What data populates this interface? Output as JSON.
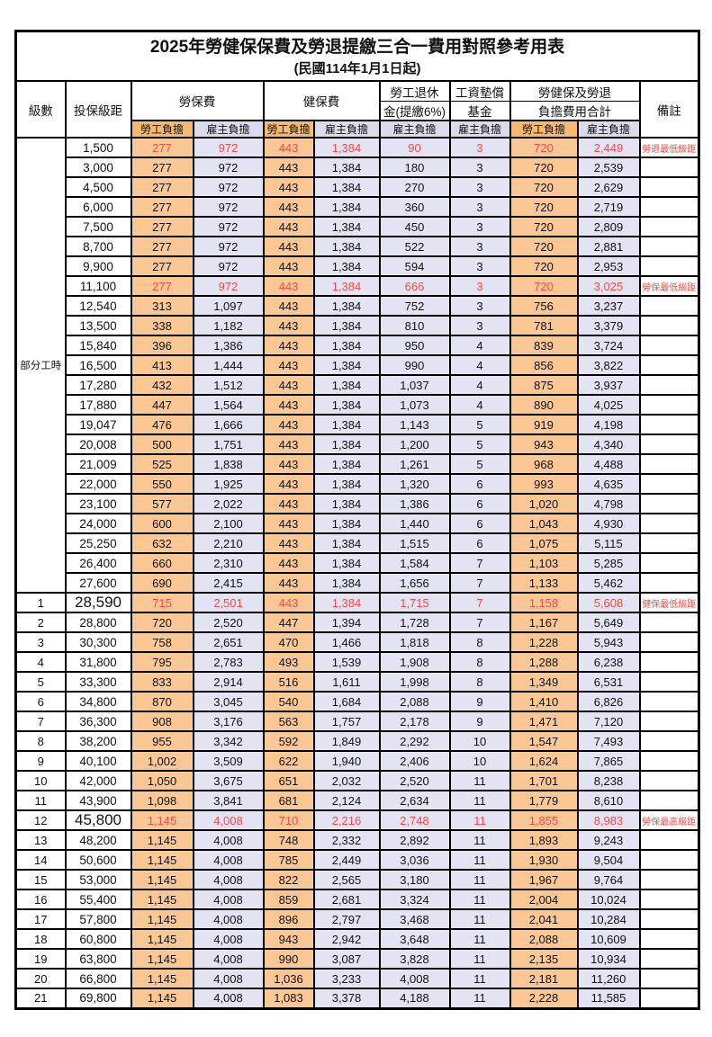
{
  "title": "2025年勞健保保費及勞退提繳三合一費用對照參考用表",
  "subtitle": "(民國114年1月1日起)",
  "colors": {
    "employee_header_bg": "#F8B871",
    "employee_cell_bg": "#FAC795",
    "employer_header_bg": "#DBDAED",
    "employer_cell_bg": "#E4E3F3",
    "highlight_red": "#EE4D4B",
    "text": "#111111",
    "border": "#000000"
  },
  "table": {
    "headers": {
      "level": "級數",
      "bracket": "投保級距",
      "labor": "勞保費",
      "health": "健保費",
      "pension_line1": "勞工退休",
      "pension_line2": "金(提繳6%)",
      "fund_line1": "工資墊償",
      "fund_line2": "基金",
      "total_line1": "勞健保及勞退",
      "total_line2": "負擔費用合計",
      "note": "備註",
      "employee_share": "勞工負擔",
      "employer_share": "雇主負擔"
    },
    "part_time_label": "部分工時",
    "part_time_rowspan": 23,
    "row_fields": [
      "level",
      "bracket",
      "labor_employee",
      "labor_employer",
      "health_employee",
      "health_employer",
      "pension_employer",
      "fund_employer",
      "total_employee",
      "total_employer",
      "note",
      "flags(r=red,b=big-bracket)"
    ],
    "rows": [
      [
        "",
        "1,500",
        "277",
        "972",
        "443",
        "1,384",
        "90",
        "3",
        "720",
        "2,449",
        "勞退最低級距",
        "r"
      ],
      [
        "",
        "3,000",
        "277",
        "972",
        "443",
        "1,384",
        "180",
        "3",
        "720",
        "2,539",
        "",
        ""
      ],
      [
        "",
        "4,500",
        "277",
        "972",
        "443",
        "1,384",
        "270",
        "3",
        "720",
        "2,629",
        "",
        ""
      ],
      [
        "",
        "6,000",
        "277",
        "972",
        "443",
        "1,384",
        "360",
        "3",
        "720",
        "2,719",
        "",
        ""
      ],
      [
        "",
        "7,500",
        "277",
        "972",
        "443",
        "1,384",
        "450",
        "3",
        "720",
        "2,809",
        "",
        ""
      ],
      [
        "",
        "8,700",
        "277",
        "972",
        "443",
        "1,384",
        "522",
        "3",
        "720",
        "2,881",
        "",
        ""
      ],
      [
        "",
        "9,900",
        "277",
        "972",
        "443",
        "1,384",
        "594",
        "3",
        "720",
        "2,953",
        "",
        ""
      ],
      [
        "",
        "11,100",
        "277",
        "972",
        "443",
        "1,384",
        "666",
        "3",
        "720",
        "3,025",
        "勞保最低級距",
        "r"
      ],
      [
        "",
        "12,540",
        "313",
        "1,097",
        "443",
        "1,384",
        "752",
        "3",
        "756",
        "3,237",
        "",
        ""
      ],
      [
        "",
        "13,500",
        "338",
        "1,182",
        "443",
        "1,384",
        "810",
        "3",
        "781",
        "3,379",
        "",
        ""
      ],
      [
        "",
        "15,840",
        "396",
        "1,386",
        "443",
        "1,384",
        "950",
        "4",
        "839",
        "3,724",
        "",
        ""
      ],
      [
        "",
        "16,500",
        "413",
        "1,444",
        "443",
        "1,384",
        "990",
        "4",
        "856",
        "3,822",
        "",
        ""
      ],
      [
        "",
        "17,280",
        "432",
        "1,512",
        "443",
        "1,384",
        "1,037",
        "4",
        "875",
        "3,937",
        "",
        ""
      ],
      [
        "",
        "17,880",
        "447",
        "1,564",
        "443",
        "1,384",
        "1,073",
        "4",
        "890",
        "4,025",
        "",
        ""
      ],
      [
        "",
        "19,047",
        "476",
        "1,666",
        "443",
        "1,384",
        "1,143",
        "5",
        "919",
        "4,198",
        "",
        ""
      ],
      [
        "",
        "20,008",
        "500",
        "1,751",
        "443",
        "1,384",
        "1,200",
        "5",
        "943",
        "4,340",
        "",
        ""
      ],
      [
        "",
        "21,009",
        "525",
        "1,838",
        "443",
        "1,384",
        "1,261",
        "5",
        "968",
        "4,488",
        "",
        ""
      ],
      [
        "",
        "22,000",
        "550",
        "1,925",
        "443",
        "1,384",
        "1,320",
        "6",
        "993",
        "4,635",
        "",
        ""
      ],
      [
        "",
        "23,100",
        "577",
        "2,022",
        "443",
        "1,384",
        "1,386",
        "6",
        "1,020",
        "4,798",
        "",
        ""
      ],
      [
        "",
        "24,000",
        "600",
        "2,100",
        "443",
        "1,384",
        "1,440",
        "6",
        "1,043",
        "4,930",
        "",
        ""
      ],
      [
        "",
        "25,250",
        "632",
        "2,210",
        "443",
        "1,384",
        "1,515",
        "6",
        "1,075",
        "5,115",
        "",
        ""
      ],
      [
        "",
        "26,400",
        "660",
        "2,310",
        "443",
        "1,384",
        "1,584",
        "7",
        "1,103",
        "5,285",
        "",
        ""
      ],
      [
        "",
        "27,600",
        "690",
        "2,415",
        "443",
        "1,384",
        "1,656",
        "7",
        "1,133",
        "5,462",
        "",
        ""
      ],
      [
        "1",
        "28,590",
        "715",
        "2,501",
        "443",
        "1,384",
        "1,715",
        "7",
        "1,158",
        "5,608",
        "健保最低級距",
        "rb"
      ],
      [
        "2",
        "28,800",
        "720",
        "2,520",
        "447",
        "1,394",
        "1,728",
        "7",
        "1,167",
        "5,649",
        "",
        ""
      ],
      [
        "3",
        "30,300",
        "758",
        "2,651",
        "470",
        "1,466",
        "1,818",
        "8",
        "1,228",
        "5,943",
        "",
        ""
      ],
      [
        "4",
        "31,800",
        "795",
        "2,783",
        "493",
        "1,539",
        "1,908",
        "8",
        "1,288",
        "6,238",
        "",
        ""
      ],
      [
        "5",
        "33,300",
        "833",
        "2,914",
        "516",
        "1,611",
        "1,998",
        "8",
        "1,349",
        "6,531",
        "",
        ""
      ],
      [
        "6",
        "34,800",
        "870",
        "3,045",
        "540",
        "1,684",
        "2,088",
        "9",
        "1,410",
        "6,826",
        "",
        ""
      ],
      [
        "7",
        "36,300",
        "908",
        "3,176",
        "563",
        "1,757",
        "2,178",
        "9",
        "1,471",
        "7,120",
        "",
        ""
      ],
      [
        "8",
        "38,200",
        "955",
        "3,342",
        "592",
        "1,849",
        "2,292",
        "10",
        "1,547",
        "7,493",
        "",
        ""
      ],
      [
        "9",
        "40,100",
        "1,002",
        "3,509",
        "622",
        "1,940",
        "2,406",
        "10",
        "1,624",
        "7,865",
        "",
        ""
      ],
      [
        "10",
        "42,000",
        "1,050",
        "3,675",
        "651",
        "2,032",
        "2,520",
        "11",
        "1,701",
        "8,238",
        "",
        ""
      ],
      [
        "11",
        "43,900",
        "1,098",
        "3,841",
        "681",
        "2,124",
        "2,634",
        "11",
        "1,779",
        "8,610",
        "",
        ""
      ],
      [
        "12",
        "45,800",
        "1,145",
        "4,008",
        "710",
        "2,216",
        "2,748",
        "11",
        "1,855",
        "8,983",
        "勞保最高級距",
        "rb"
      ],
      [
        "13",
        "48,200",
        "1,145",
        "4,008",
        "748",
        "2,332",
        "2,892",
        "11",
        "1,893",
        "9,243",
        "",
        ""
      ],
      [
        "14",
        "50,600",
        "1,145",
        "4,008",
        "785",
        "2,449",
        "3,036",
        "11",
        "1,930",
        "9,504",
        "",
        ""
      ],
      [
        "15",
        "53,000",
        "1,145",
        "4,008",
        "822",
        "2,565",
        "3,180",
        "11",
        "1,967",
        "9,764",
        "",
        ""
      ],
      [
        "16",
        "55,400",
        "1,145",
        "4,008",
        "859",
        "2,681",
        "3,324",
        "11",
        "2,004",
        "10,024",
        "",
        ""
      ],
      [
        "17",
        "57,800",
        "1,145",
        "4,008",
        "896",
        "2,797",
        "3,468",
        "11",
        "2,041",
        "10,284",
        "",
        ""
      ],
      [
        "18",
        "60,800",
        "1,145",
        "4,008",
        "943",
        "2,942",
        "3,648",
        "11",
        "2,088",
        "10,609",
        "",
        ""
      ],
      [
        "19",
        "63,800",
        "1,145",
        "4,008",
        "990",
        "3,087",
        "3,828",
        "11",
        "2,135",
        "10,934",
        "",
        ""
      ],
      [
        "20",
        "66,800",
        "1,145",
        "4,008",
        "1,036",
        "3,233",
        "4,008",
        "11",
        "2,181",
        "11,260",
        "",
        ""
      ],
      [
        "21",
        "69,800",
        "1,145",
        "4,008",
        "1,083",
        "3,378",
        "4,188",
        "11",
        "2,228",
        "11,585",
        "",
        ""
      ]
    ]
  }
}
